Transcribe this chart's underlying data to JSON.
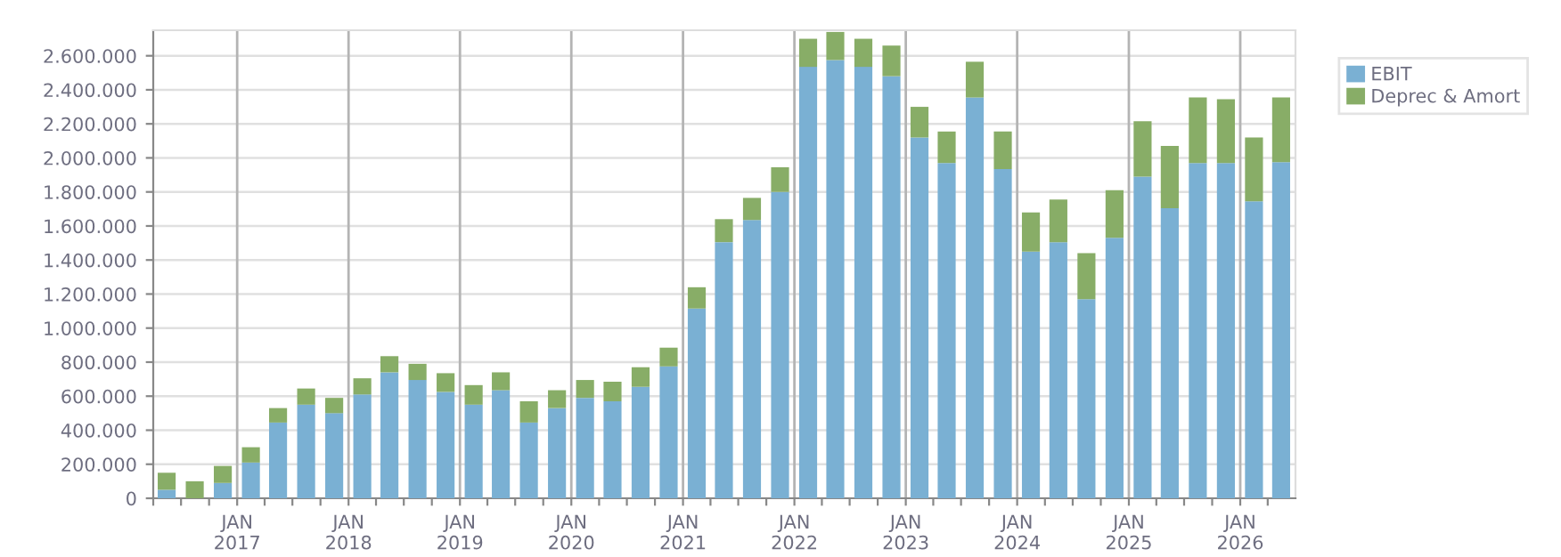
{
  "chart_data": {
    "type": "bar",
    "stacked": true,
    "x": [
      "2016-05-15",
      "2016-08-15",
      "2016-11-15",
      "2017-02-15",
      "2017-05-15",
      "2017-08-15",
      "2017-11-15",
      "2018-02-15",
      "2018-05-15",
      "2018-08-15",
      "2018-11-15",
      "2019-02-15",
      "2019-05-15",
      "2019-08-15",
      "2019-11-15",
      "2020-02-15",
      "2020-05-15",
      "2020-08-15",
      "2020-11-15",
      "2021-02-15",
      "2021-05-15",
      "2021-08-15",
      "2021-11-15",
      "2022-02-15",
      "2022-05-15",
      "2022-08-15",
      "2022-11-15",
      "2023-02-15",
      "2023-05-15",
      "2023-08-15",
      "2023-11-15",
      "2024-02-15",
      "2024-05-15",
      "2024-08-15",
      "2024-11-15",
      "2025-02-15",
      "2025-05-15",
      "2025-08-15",
      "2025-11-15",
      "2026-02-15",
      "2026-05-15"
    ],
    "series": [
      {
        "name": "EBIT",
        "color": "#7ab0d3",
        "values": [
          50000,
          0,
          90000,
          210000,
          445000,
          550000,
          500000,
          610000,
          740000,
          695000,
          625000,
          550000,
          635000,
          445000,
          530000,
          590000,
          570000,
          655000,
          775000,
          1115000,
          1505000,
          1635000,
          1800000,
          2535000,
          2575000,
          2535000,
          2480000,
          2120000,
          1970000,
          2355000,
          1935000,
          1450000,
          1505000,
          1170000,
          1530000,
          1890000,
          1705000,
          1970000,
          1970000,
          1745000,
          1975000
        ]
      },
      {
        "name": "Deprec & Amort",
        "color": "#88ad67",
        "values": [
          100000,
          100000,
          100000,
          90000,
          85000,
          95000,
          90000,
          95000,
          95000,
          95000,
          110000,
          115000,
          105000,
          125000,
          105000,
          105000,
          115000,
          115000,
          110000,
          125000,
          135000,
          130000,
          145000,
          165000,
          165000,
          165000,
          180000,
          180000,
          185000,
          210000,
          220000,
          230000,
          250000,
          270000,
          280000,
          325000,
          365000,
          385000,
          375000,
          375000,
          380000
        ]
      }
    ],
    "xlim": [
      "2016-04-01",
      "2026-07-01"
    ],
    "xticks": [
      {
        "value": "2016-04-01",
        "label": null
      },
      {
        "value": "2016-07-01",
        "label": null
      },
      {
        "value": "2016-10-01",
        "label": null
      },
      {
        "value": "2017-01-01",
        "label": "JAN\n2017"
      },
      {
        "value": "2017-04-01",
        "label": null
      },
      {
        "value": "2017-07-01",
        "label": null
      },
      {
        "value": "2017-10-01",
        "label": null
      },
      {
        "value": "2018-01-01",
        "label": "JAN\n2018"
      },
      {
        "value": "2018-04-01",
        "label": null
      },
      {
        "value": "2018-07-01",
        "label": null
      },
      {
        "value": "2018-10-01",
        "label": null
      },
      {
        "value": "2019-01-01",
        "label": "JAN\n2019"
      },
      {
        "value": "2019-04-01",
        "label": null
      },
      {
        "value": "2019-07-01",
        "label": null
      },
      {
        "value": "2019-10-01",
        "label": null
      },
      {
        "value": "2020-01-01",
        "label": "JAN\n2020"
      },
      {
        "value": "2020-04-01",
        "label": null
      },
      {
        "value": "2020-07-01",
        "label": null
      },
      {
        "value": "2020-10-01",
        "label": null
      },
      {
        "value": "2021-01-01",
        "label": "JAN\n2021"
      },
      {
        "value": "2021-04-01",
        "label": null
      },
      {
        "value": "2021-07-01",
        "label": null
      },
      {
        "value": "2021-10-01",
        "label": null
      },
      {
        "value": "2022-01-01",
        "label": "JAN\n2022"
      },
      {
        "value": "2022-04-01",
        "label": null
      },
      {
        "value": "2022-07-01",
        "label": null
      },
      {
        "value": "2022-10-01",
        "label": null
      },
      {
        "value": "2023-01-01",
        "label": "JAN\n2023"
      },
      {
        "value": "2023-04-01",
        "label": null
      },
      {
        "value": "2023-07-01",
        "label": null
      },
      {
        "value": "2023-10-01",
        "label": null
      },
      {
        "value": "2024-01-01",
        "label": "JAN\n2024"
      },
      {
        "value": "2024-04-01",
        "label": null
      },
      {
        "value": "2024-07-01",
        "label": null
      },
      {
        "value": "2024-10-01",
        "label": null
      },
      {
        "value": "2025-01-01",
        "label": "JAN\n2025"
      },
      {
        "value": "2025-04-01",
        "label": null
      },
      {
        "value": "2025-07-01",
        "label": null
      },
      {
        "value": "2025-10-01",
        "label": null
      },
      {
        "value": "2026-01-01",
        "label": "JAN\n2026"
      },
      {
        "value": "2026-04-01",
        "label": null
      }
    ],
    "ylim": [
      0,
      2750000
    ],
    "yticks": [
      0,
      {
        "value": 200000,
        "label": "200.000"
      },
      {
        "value": 400000,
        "label": "400.000"
      },
      {
        "value": 600000,
        "label": "600.000"
      },
      {
        "value": 800000,
        "label": "800.000"
      },
      {
        "value": 1000000,
        "label": "1.000.000"
      },
      {
        "value": 1200000,
        "label": "1.200.000"
      },
      {
        "value": 1400000,
        "label": "1.400.000"
      },
      {
        "value": 1600000,
        "label": "1.600.000"
      },
      {
        "value": 1800000,
        "label": "1.800.000"
      },
      {
        "value": 2000000,
        "label": "2.000.000"
      },
      {
        "value": 2200000,
        "label": "2.200.000"
      },
      {
        "value": 2400000,
        "label": "2.400.000"
      },
      {
        "value": 2600000,
        "label": "2.600.000"
      }
    ],
    "grid": true,
    "legend": "top right"
  }
}
